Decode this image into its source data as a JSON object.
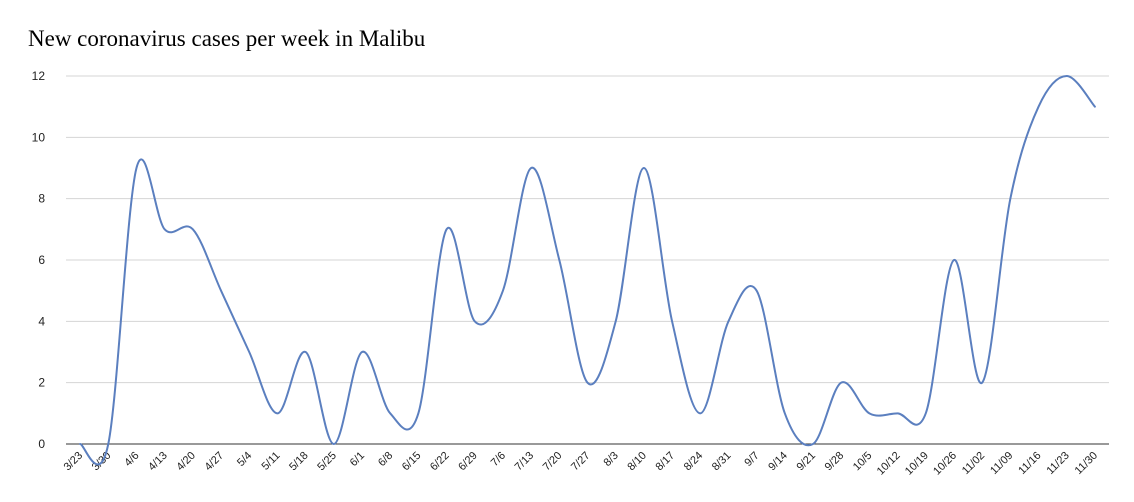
{
  "chart_data": {
    "type": "line",
    "title": "New coronavirus cases per week in Malibu",
    "xlabel": "",
    "ylabel": "",
    "ylim": [
      0,
      12
    ],
    "yticks": [
      0,
      2,
      4,
      6,
      8,
      10,
      12
    ],
    "grid": true,
    "legend": "none",
    "line_color": "#5b7fbf",
    "categories": [
      "3/23",
      "3/30",
      "4/6",
      "4/13",
      "4/20",
      "4/27",
      "5/4",
      "5/11",
      "5/18",
      "5/25",
      "6/1",
      "6/8",
      "6/15",
      "6/22",
      "6/29",
      "7/6",
      "7/13",
      "7/20",
      "7/27",
      "8/3",
      "8/10",
      "8/17",
      "8/24",
      "8/31",
      "9/7",
      "9/14",
      "9/21",
      "9/28",
      "10/5",
      "10/12",
      "10/19",
      "10/26",
      "11/02",
      "11/09",
      "11/16",
      "11/23",
      "11/30"
    ],
    "series": [
      {
        "values": [
          0,
          0,
          9,
          7,
          7,
          5,
          3,
          1,
          3,
          0,
          3,
          1,
          1,
          7,
          4,
          5,
          9,
          6,
          2,
          4,
          9,
          4,
          1,
          4,
          5,
          1,
          0,
          2,
          1,
          1,
          1,
          6,
          2,
          8,
          11,
          12,
          11
        ]
      }
    ]
  }
}
